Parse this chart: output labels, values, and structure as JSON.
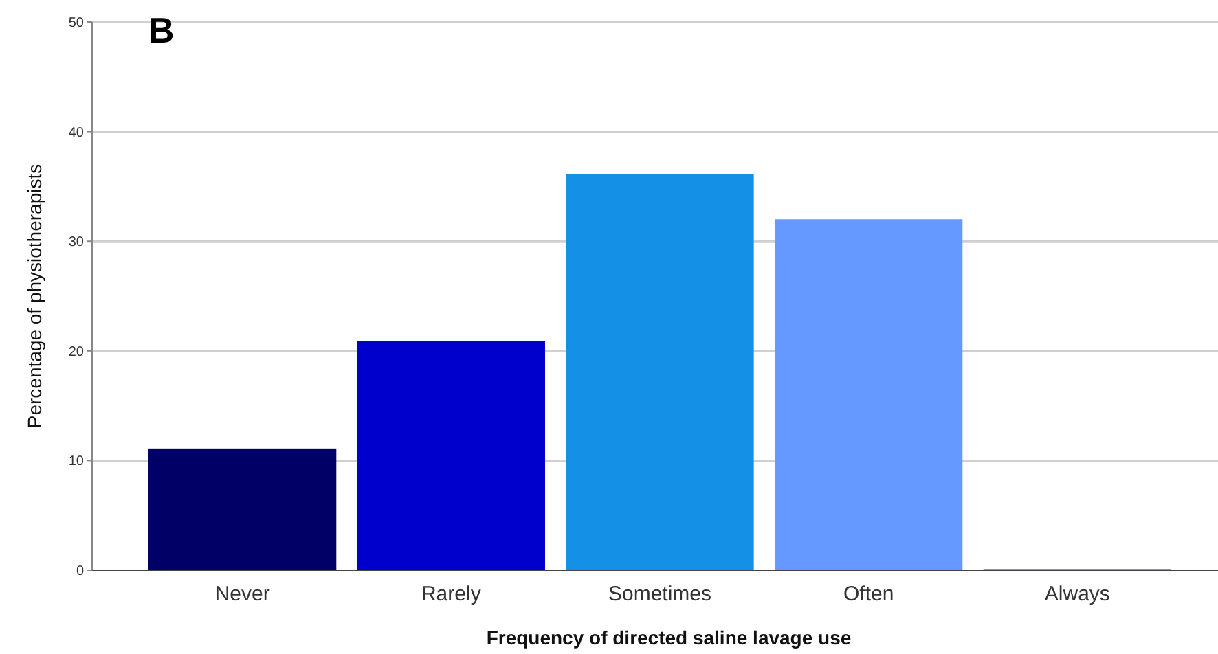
{
  "chart_data": {
    "type": "bar",
    "xlabel": "Frequency of directed saline lavage use",
    "ylabel": "Percentage of physiotherapists",
    "annotations": [
      "B"
    ],
    "categories": [
      "Never",
      "Rarely",
      "Sometimes",
      "Often",
      "Always"
    ],
    "values": [
      11.1,
      20.9,
      36.1,
      32.0,
      0
    ],
    "colors": [
      "#000066",
      "#0000cc",
      "#1490e6",
      "#6699ff",
      "#6699ff"
    ],
    "ylim": [
      0,
      50
    ],
    "yticks": [
      0,
      10,
      20,
      30,
      40,
      50
    ],
    "grid": "y"
  }
}
